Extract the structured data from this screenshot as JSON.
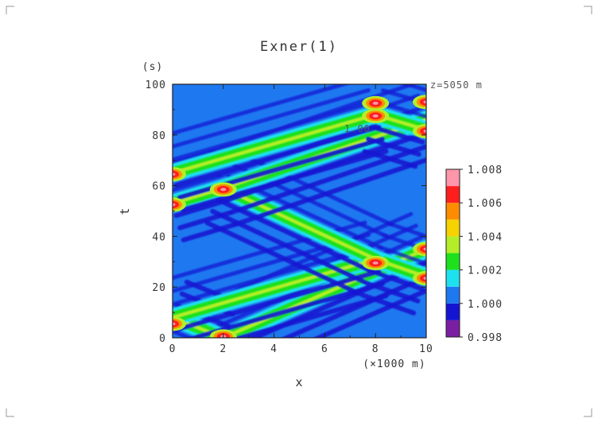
{
  "chart_data": {
    "type": "heatmap",
    "title": "Exner(1)",
    "xlabel": "x",
    "xunit": "(×1000 m)",
    "ylabel": "t",
    "yunit": "(s)",
    "annotation": "z=5050 m",
    "contour_label": "1.00",
    "xlim": [
      0,
      10
    ],
    "ylim": [
      0,
      100
    ],
    "xticks": [
      "0",
      "2",
      "4",
      "6",
      "8",
      "10"
    ],
    "yticks": [
      "0",
      "20",
      "40",
      "60",
      "80",
      "100"
    ],
    "colorbar": {
      "levels": [
        0.998,
        1.0,
        1.002,
        1.004,
        1.006,
        1.008
      ],
      "level_labels": [
        "0.998",
        "1.000",
        "1.002",
        "1.004",
        "1.006",
        "1.008"
      ],
      "colors": [
        "#7b1fa2",
        "#1414d2",
        "#1e78f0",
        "#1ee1f0",
        "#1ee11e",
        "#b4ee28",
        "#f5d200",
        "#ff8c00",
        "#ff1e1e",
        "#ff96aa"
      ]
    },
    "features": {
      "wave_fronts": [
        {
          "x0": 2.0,
          "t0": 0,
          "x1": 10.0,
          "t1": 35
        },
        {
          "x0": 2.0,
          "t0": 0,
          "x1": 0.0,
          "t1": 8
        },
        {
          "x0": 0.0,
          "t0": 8,
          "x1": 8.0,
          "t1": 31
        },
        {
          "x0": 8.0,
          "t0": 31,
          "x1": 10.0,
          "t1": 24
        },
        {
          "x0": 0.0,
          "t0": 53,
          "x1": 2.0,
          "t1": 59
        },
        {
          "x0": 2.0,
          "t0": 59,
          "x1": 8.0,
          "t1": 31
        },
        {
          "x0": 2.0,
          "t0": 59,
          "x1": 10.0,
          "t1": 86
        },
        {
          "x0": 0.0,
          "t0": 65,
          "x1": 8.0,
          "t1": 88
        },
        {
          "x0": 8.0,
          "t0": 88,
          "x1": 10.0,
          "t1": 82
        }
      ],
      "max_spots": [
        {
          "x": 2.0,
          "t": 0.5
        },
        {
          "x": 0.0,
          "t": 5.5
        },
        {
          "x": 0.0,
          "t": 52.5
        },
        {
          "x": 2.0,
          "t": 58.5
        },
        {
          "x": 0.0,
          "t": 64.5
        },
        {
          "x": 8.0,
          "t": 29.5
        },
        {
          "x": 10.0,
          "t": 23.5
        },
        {
          "x": 10.0,
          "t": 35
        },
        {
          "x": 8.0,
          "t": 87.5
        },
        {
          "x": 10.0,
          "t": 81.5
        },
        {
          "x": 8.0,
          "t": 92.5
        },
        {
          "x": 10.0,
          "t": 93
        }
      ]
    }
  }
}
